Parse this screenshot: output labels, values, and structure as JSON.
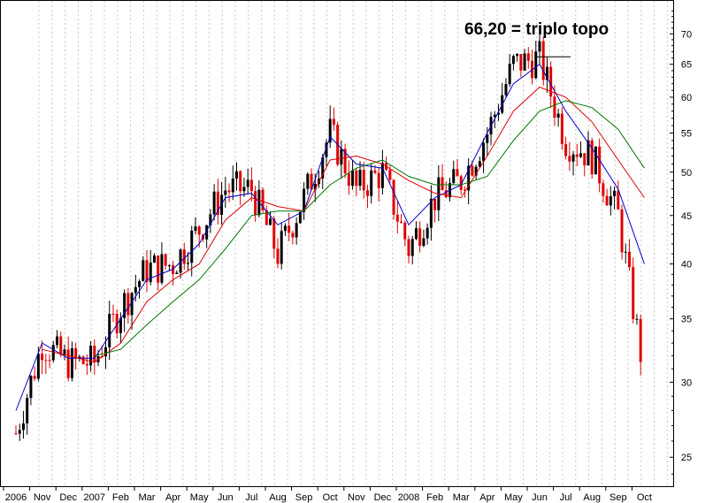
{
  "chart_data": {
    "type": "candlestick",
    "title": "",
    "xlabel": "",
    "ylabel": "",
    "y_scale": "log",
    "ylim": [
      23.3,
      76
    ],
    "y_ticks": [
      25,
      30,
      35,
      40,
      45,
      50,
      55,
      60,
      65,
      70
    ],
    "y_axis_position": "right",
    "x_tick_labels": [
      "2006",
      "Nov",
      "Dec",
      "2007",
      "Feb",
      "Mar",
      "Apr",
      "May",
      "Jun",
      "Jul",
      "Aug",
      "Sep",
      "Oct",
      "Nov",
      "Dec",
      "2008",
      "Feb",
      "Mar",
      "Apr",
      "May",
      "Jun",
      "Jul",
      "Aug",
      "Sep",
      "Oct"
    ],
    "grid": "vertical dashed",
    "annotation": {
      "text": "66,20 = triplo topo",
      "value": 66.2
    },
    "close_path": [
      [
        "2006",
        26.5
      ],
      [
        "Nov",
        33
      ],
      [
        "Dec",
        31.5
      ],
      [
        "2007",
        31.5
      ],
      [
        "Feb",
        36
      ],
      [
        "Mar",
        39.5
      ],
      [
        "Apr",
        40
      ],
      [
        "May",
        43.5
      ],
      [
        "Jun",
        48
      ],
      [
        "Jul",
        48
      ],
      [
        "Aug",
        41
      ],
      [
        "Sep",
        47
      ],
      [
        "Oct",
        55
      ],
      [
        "Nov",
        48
      ],
      [
        "Dec",
        50
      ],
      [
        "2008",
        41.5
      ],
      [
        "Feb",
        47
      ],
      [
        "Mar",
        49
      ],
      [
        "Apr",
        55
      ],
      [
        "May",
        65
      ],
      [
        "Jun",
        66
      ],
      [
        "Jul",
        54
      ],
      [
        "Aug",
        52
      ],
      [
        "Sep",
        45
      ],
      [
        "Oct",
        30.5
      ]
    ],
    "series": [
      {
        "color": "#0000cc",
        "values": [
          28.0,
          33.0,
          31.8,
          31.8,
          35.0,
          38.5,
          39.5,
          42.0,
          47.0,
          47.5,
          44.0,
          45.5,
          54.5,
          51.0,
          50.5,
          44.0,
          47.0,
          48.5,
          55.0,
          62.0,
          65.0,
          58.0,
          53.0,
          48.0,
          40.0
        ]
      },
      {
        "color": "#dd0000",
        "values": [
          null,
          32.5,
          32.0,
          31.5,
          33.0,
          36.5,
          38.5,
          40.0,
          44.5,
          47.0,
          46.0,
          45.5,
          51.5,
          52.0,
          51.0,
          49.0,
          47.5,
          47.0,
          52.0,
          58.0,
          61.5,
          60.0,
          56.5,
          51.5,
          47.0
        ]
      },
      {
        "color": "#007700",
        "values": [
          null,
          null,
          null,
          32.0,
          32.5,
          34.5,
          36.5,
          38.5,
          41.5,
          45.0,
          45.5,
          45.5,
          48.5,
          50.5,
          51.5,
          49.5,
          48.5,
          48.5,
          49.5,
          54.0,
          58.0,
          59.5,
          58.5,
          55.5,
          50.5
        ]
      }
    ]
  }
}
